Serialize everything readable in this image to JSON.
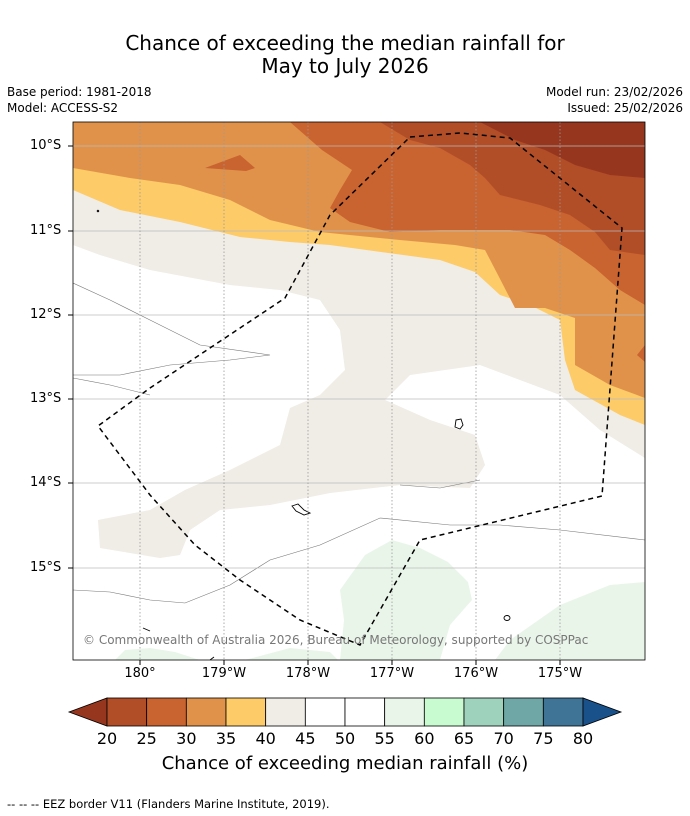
{
  "title": {
    "line1": "Chance of exceeding the median rainfall for",
    "line2": "May to July 2026"
  },
  "metadata": {
    "base_period": "Base period: 1981-2018",
    "model": "Model: ACCESS-S2",
    "model_run": "Model run: 23/02/2026",
    "issued": "Issued: 25/02/2026"
  },
  "map": {
    "lat_labels": [
      "10°S",
      "11°S",
      "12°S",
      "13°S",
      "14°S",
      "15°S"
    ],
    "lon_labels": [
      "180°",
      "179°W",
      "178°W",
      "177°W",
      "176°W",
      "175°W"
    ],
    "copyright": "© Commonwealth of Australia 2026, Bureau of Meteorology, supported by COSPPac"
  },
  "colorbar": {
    "ticks": [
      "20",
      "25",
      "30",
      "35",
      "40",
      "45",
      "50",
      "55",
      "60",
      "65",
      "70",
      "75",
      "80"
    ],
    "colors": [
      "#b14e28",
      "#c9632f",
      "#e0924a",
      "#fdcb68",
      "#f0ece6",
      "#ffffff",
      "#ffffff",
      "#eaf5ea",
      "#c8fbcf",
      "#9fd2bd",
      "#6ea7a6",
      "#3f7496"
    ],
    "under_color": "#96361f",
    "over_color": "#19518a",
    "label": "Chance of exceeding median rainfall (%)"
  },
  "footer": {
    "eez_note": "--  --  -- EEZ border V11 (Flanders Marine Institute, 2019)."
  }
}
